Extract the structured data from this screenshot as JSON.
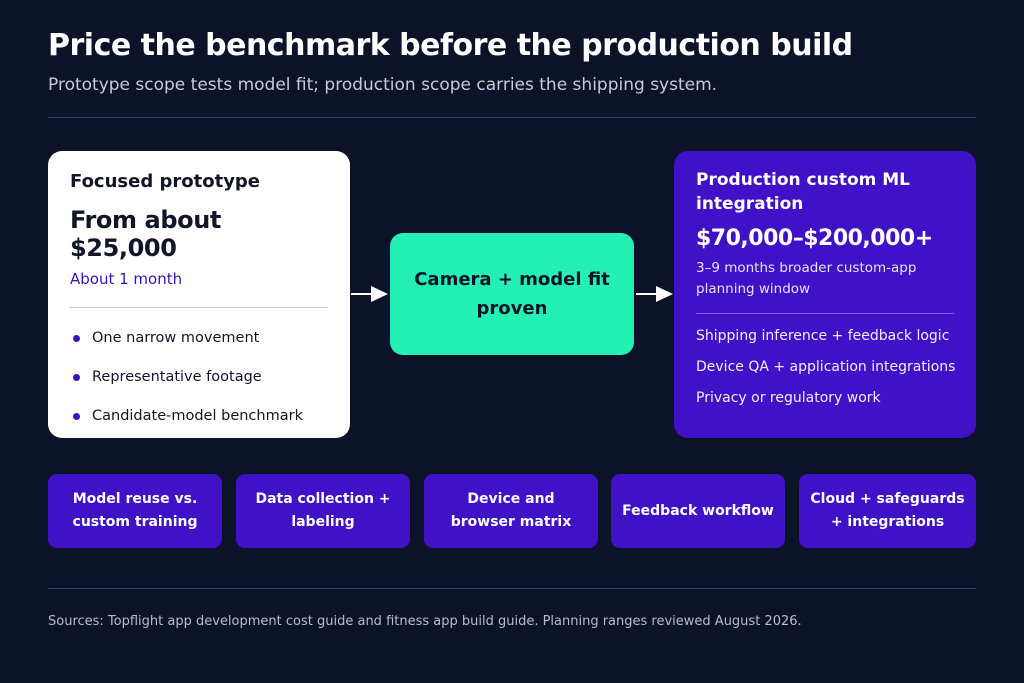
{
  "header": {
    "title": "Price the benchmark before the production build",
    "subtitle": "Prototype scope tests model fit; production scope carries the shipping system."
  },
  "prototype": {
    "heading": "Focused prototype",
    "price": "From about $25,000",
    "duration": "About 1 month",
    "items": [
      "One narrow movement",
      "Representative footage",
      "Candidate-model benchmark"
    ]
  },
  "milestone": {
    "label": "Camera + model fit proven"
  },
  "production": {
    "heading": "Production custom ML integration",
    "price": "$70,000–$200,000+",
    "duration": "3–9 months broader custom-app planning window",
    "items": [
      "Shipping inference + feedback logic",
      "Device QA + application integrations",
      "Privacy or regulatory work"
    ]
  },
  "factors": [
    "Model reuse vs. custom training",
    "Data collection + labeling",
    "Device and browser matrix",
    "Feedback workflow",
    "Cloud + safeguards + integrations"
  ],
  "footer": {
    "sources": "Sources: Topflight app development cost guide and fitness app build guide. Planning ranges reviewed August 2026."
  },
  "colors": {
    "background": "#0c1228",
    "accent_purple": "#3f12c7",
    "accent_green": "#25f0b4",
    "card_white": "#ffffff"
  }
}
